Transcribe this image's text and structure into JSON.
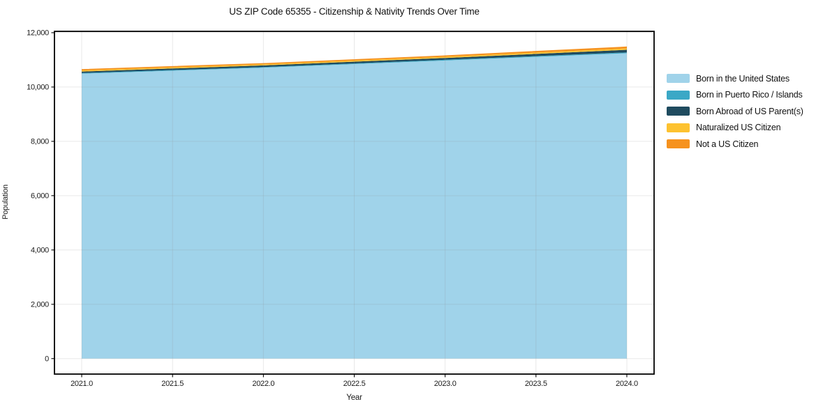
{
  "chart_data": {
    "type": "area",
    "stacked": true,
    "title": "US ZIP Code 65355 - Citizenship & Nativity Trends Over Time",
    "xlabel": "Year",
    "ylabel": "Population",
    "x": [
      2021,
      2022,
      2023,
      2024
    ],
    "series": [
      {
        "name": "Born in the United States",
        "color": "#a0d3ea",
        "values": [
          10490,
          10710,
          10975,
          11245
        ]
      },
      {
        "name": "Born in Puerto Rico / Islands",
        "color": "#3ba8c6",
        "values": [
          25,
          25,
          28,
          30
        ]
      },
      {
        "name": "Born Abroad of US Parent(s)",
        "color": "#1f4b5f",
        "values": [
          55,
          60,
          67,
          95
        ]
      },
      {
        "name": "Naturalized US Citizen",
        "color": "#fdc230",
        "values": [
          42,
          40,
          45,
          52
        ]
      },
      {
        "name": "Not a US Citizen",
        "color": "#f6921e",
        "values": [
          48,
          45,
          50,
          68
        ]
      }
    ],
    "totals": [
      10660,
      10880,
      11165,
      11490
    ],
    "xticks": [
      2021.0,
      2021.5,
      2022.0,
      2022.5,
      2023.0,
      2023.5,
      2024.0
    ],
    "yticks": [
      0,
      2000,
      4000,
      6000,
      8000,
      10000,
      12000
    ],
    "xlim": [
      2020.85,
      2024.15
    ],
    "ylim": [
      -570,
      12050
    ],
    "grid": true,
    "grid_over_areas": true,
    "legend_position": "outside-right",
    "frame_color": "#000000"
  }
}
